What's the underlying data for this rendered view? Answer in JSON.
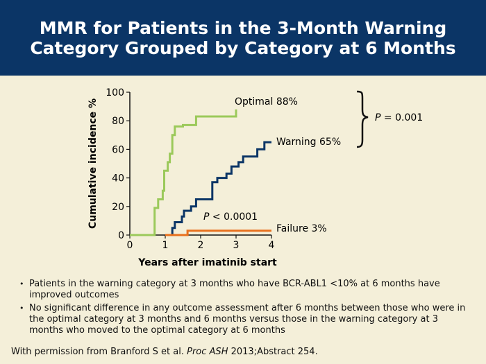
{
  "title": "MMR for Patients in the 3-Month Warning Category Grouped by Category at 6 Months",
  "colors": {
    "title_bg": "#0b3566",
    "background": "#f4efd9",
    "optimal": "#9bc95a",
    "warning": "#0b3566",
    "failure": "#e8701d"
  },
  "chart_data": {
    "type": "line",
    "step": true,
    "xlabel": "Years after imatinib start",
    "ylabel": "Cumulative incidence %",
    "xlim": [
      0,
      4
    ],
    "ylim": [
      0,
      100
    ],
    "xticks": [
      "0",
      "1",
      "2",
      "3",
      "4"
    ],
    "yticks": [
      "0",
      "20",
      "40",
      "60",
      "80",
      "100"
    ],
    "series": [
      {
        "name": "Optimal 88%",
        "color": "#9bc95a",
        "x": [
          0,
          0.7,
          0.7,
          0.8,
          0.8,
          0.93,
          0.93,
          0.97,
          0.97,
          1.07,
          1.07,
          1.13,
          1.13,
          1.2,
          1.2,
          1.27,
          1.27,
          1.5,
          1.5,
          1.87,
          1.87,
          3.0,
          3.0
        ],
        "y": [
          0,
          0,
          19,
          19,
          25,
          25,
          31,
          31,
          45,
          45,
          51,
          51,
          57,
          57,
          70,
          70,
          76,
          76,
          77,
          77,
          83,
          83,
          88
        ]
      },
      {
        "name": "Warning 65%",
        "color": "#0b3566",
        "x": [
          1.0,
          1.2,
          1.2,
          1.27,
          1.27,
          1.47,
          1.47,
          1.53,
          1.53,
          1.73,
          1.73,
          1.87,
          1.87,
          2.33,
          2.33,
          2.47,
          2.47,
          2.73,
          2.73,
          2.87,
          2.87,
          3.07,
          3.07,
          3.2,
          3.2,
          3.6,
          3.6,
          3.8,
          3.8,
          4.0
        ],
        "y": [
          0,
          0,
          5,
          5,
          9,
          9,
          13,
          13,
          17,
          17,
          20,
          20,
          25,
          25,
          37,
          37,
          40,
          40,
          43,
          43,
          48,
          48,
          51,
          51,
          55,
          55,
          60,
          60,
          65,
          65
        ]
      },
      {
        "name": "Failure 3%",
        "color": "#e8701d",
        "x": [
          1.0,
          1.63,
          1.63,
          4.0
        ],
        "y": [
          0,
          0,
          3,
          3
        ]
      }
    ],
    "annotations": {
      "optimal_label": "Optimal 88%",
      "warning_label": "Warning 65%",
      "failure_label": "Failure 3%",
      "p_overall_label": "P",
      "p_overall_value": " = 0.001",
      "p_failure_label": "P",
      "p_failure_value": " < 0.0001"
    }
  },
  "bullets": [
    "Patients in the warning category at 3 months who have BCR-ABL1 <10% at 6 months have improved outcomes",
    "No significant difference in any outcome assessment after 6 months between those who were in the optimal category at 3 months and 6 months versus those in the warning category at 3 months who moved to the optimal category at 6 months"
  ],
  "citation": {
    "prefix": "With permission from Branford S et al. ",
    "journal": "Proc ASH",
    "suffix": " 2013;Abstract 254."
  }
}
